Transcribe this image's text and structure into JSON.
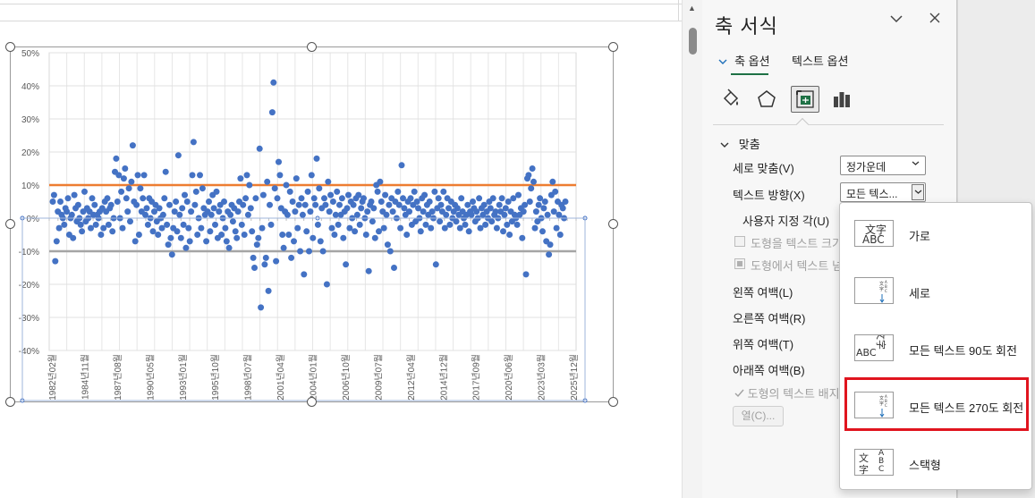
{
  "chart_data": {
    "type": "scatter",
    "y_axis": {
      "ticks": [
        "50%",
        "40%",
        "30%",
        "20%",
        "10%",
        "0%",
        "-10%",
        "-20%",
        "-30%",
        "-40%"
      ],
      "ylim": [
        -0.4,
        0.5
      ]
    },
    "x_axis": {
      "tick_labels": [
        "1982년02월",
        "1984년11월",
        "1987년08월",
        "1990년05월",
        "1993년01월",
        "1995년10월",
        "1998년07월",
        "2001년04월",
        "2004년01월",
        "2006년10월",
        "2009년07월",
        "2012년04월",
        "2014년12월",
        "2017년09월",
        "2020년06월",
        "2023년03월",
        "2025년12월"
      ],
      "label_note": "axis tick labels are rotated 270 degrees"
    },
    "reference_lines": [
      {
        "value": 0.1,
        "color": "#ed7d31"
      },
      {
        "value": -0.1,
        "color": "#a5a5a5"
      }
    ],
    "series": [
      {
        "color": "#4472c4",
        "values": [
          0.05,
          0.07,
          -0.13,
          -0.07,
          0.02,
          -0.03,
          0.05,
          0.01,
          0.0,
          -0.02,
          0.03,
          0.02,
          0.06,
          -0.05,
          0.0,
          0.01,
          -0.06,
          0.07,
          0.03,
          -0.01,
          0.04,
          0.0,
          -0.02,
          -0.04,
          0.02,
          0.08,
          -0.01,
          0.03,
          0.0,
          0.02,
          -0.03,
          0.06,
          0.01,
          0.04,
          -0.02,
          0.01,
          0.0,
          0.02,
          -0.05,
          0.03,
          -0.03,
          0.05,
          0.02,
          0.06,
          -0.02,
          0.03,
          0.04,
          -0.04,
          0.0,
          0.14,
          0.18,
          0.05,
          0.13,
          0.0,
          0.08,
          -0.03,
          0.12,
          0.15,
          0.06,
          0.02,
          0.09,
          -0.01,
          0.11,
          0.22,
          0.05,
          -0.07,
          0.04,
          0.13,
          -0.05,
          0.09,
          0.02,
          0.06,
          0.13,
          0.01,
          0.03,
          -0.02,
          0.06,
          0.0,
          0.05,
          -0.04,
          0.02,
          0.04,
          -0.01,
          -0.05,
          0.03,
          0.0,
          -0.03,
          0.01,
          0.06,
          0.14,
          -0.02,
          -0.08,
          0.04,
          -0.06,
          -0.11,
          -0.03,
          0.02,
          0.05,
          -0.04,
          0.19,
          0.01,
          -0.06,
          0.03,
          -0.02,
          0.07,
          -0.09,
          0.05,
          -0.03,
          -0.07,
          0.02,
          0.13,
          0.23,
          0.04,
          0.08,
          -0.05,
          0.0,
          0.13,
          -0.03,
          0.09,
          0.03,
          0.01,
          -0.07,
          0.02,
          0.05,
          -0.04,
          0.01,
          0.07,
          0.03,
          -0.02,
          0.08,
          -0.06,
          0.02,
          0.04,
          -0.05,
          0.0,
          0.05,
          -0.03,
          -0.07,
          0.02,
          -0.09,
          0.01,
          0.04,
          -0.01,
          0.03,
          -0.04,
          -0.06,
          0.02,
          0.05,
          0.12,
          -0.02,
          0.04,
          -0.05,
          0.06,
          0.13,
          0.01,
          0.1,
          0.03,
          -0.04,
          -0.12,
          -0.15,
          0.06,
          -0.08,
          -0.06,
          0.21,
          -0.27,
          -0.03,
          0.07,
          -0.14,
          -0.12,
          0.11,
          -0.22,
          0.04,
          -0.02,
          0.32,
          0.41,
          0.09,
          -0.13,
          0.06,
          0.17,
          0.13,
          0.03,
          -0.05,
          -0.09,
          0.02,
          0.1,
          0.01,
          -0.05,
          0.08,
          -0.12,
          0.05,
          -0.07,
          0.02,
          0.12,
          -0.03,
          0.04,
          -0.1,
          0.06,
          0.01,
          -0.17,
          0.04,
          -0.04,
          0.08,
          -0.1,
          0.02,
          0.13,
          -0.06,
          0.06,
          0.04,
          0.18,
          -0.02,
          0.09,
          -0.07,
          0.03,
          -0.1,
          0.06,
          0.04,
          -0.2,
          0.11,
          0.02,
          0.07,
          -0.03,
          0.05,
          -0.05,
          0.01,
          0.08,
          -0.02,
          0.04,
          0.01,
          0.06,
          -0.06,
          0.02,
          -0.14,
          0.03,
          0.07,
          -0.03,
          0.05,
          0.0,
          0.04,
          -0.04,
          0.06,
          0.01,
          0.07,
          -0.02,
          0.03,
          0.05,
          0.06,
          0.0,
          -0.05,
          0.02,
          -0.16,
          0.04,
          0.05,
          -0.01,
          0.03,
          -0.06,
          0.1,
          0.08,
          -0.04,
          0.11,
          0.05,
          0.02,
          -0.03,
          0.07,
          0.01,
          -0.08,
          0.04,
          -0.1,
          0.06,
          0.02,
          -0.15,
          0.05,
          0.0,
          0.08,
          0.04,
          -0.03,
          0.16,
          0.06,
          0.03,
          0.01,
          -0.05,
          0.05,
          0.02,
          0.06,
          -0.02,
          0.04,
          0.08,
          -0.01,
          0.05,
          0.03,
          0.0,
          -0.04,
          0.06,
          0.02,
          0.07,
          -0.02,
          0.04,
          0.01,
          0.05,
          -0.03,
          0.02,
          0.0,
          0.08,
          -0.14,
          0.03,
          0.06,
          -0.01,
          0.04,
          0.02,
          0.08,
          -0.03,
          0.01,
          0.06,
          0.03,
          -0.02,
          0.05,
          0.0,
          0.02,
          0.04,
          -0.01,
          0.03,
          0.01,
          -0.03,
          0.06,
          0.02,
          0.0,
          -0.02,
          0.01,
          0.04,
          -0.04,
          0.02,
          0.01,
          0.05,
          0.03,
          -0.01,
          0.02,
          0.0,
          0.06,
          -0.03,
          0.03,
          0.01,
          0.04,
          -0.02,
          0.02,
          0.0,
          0.05,
          0.03,
          -0.01,
          0.06,
          0.01,
          0.02,
          -0.03,
          0.0,
          0.04,
          0.02,
          0.06,
          -0.04,
          0.01,
          0.03,
          -0.02,
          0.05,
          -0.05,
          0.02,
          -0.01,
          0.06,
          0.01,
          0.0,
          -0.02,
          0.07,
          0.01,
          0.03,
          -0.06,
          0.02,
          0.04,
          -0.17,
          0.12,
          0.13,
          0.05,
          0.09,
          0.15,
          0.11,
          -0.03,
          0.02,
          -0.01,
          0.04,
          0.06,
          0.0,
          -0.04,
          0.03,
          0.05,
          -0.07,
          0.01,
          -0.11,
          -0.08,
          0.07,
          0.11,
          0.02,
          0.08,
          -0.03,
          0.05,
          0.01,
          -0.05,
          0.04,
          0.03,
          0.0,
          0.05
        ]
      }
    ]
  },
  "pane": {
    "title": "축 서식",
    "tab_axis_options": "축 옵션",
    "tab_text_options": "텍스트 옵션",
    "section": "맞춤",
    "fields": {
      "vertical_align_label": "세로 맞춤(V)",
      "vertical_align_value": "정가운데",
      "text_direction_label": "텍스트 방향(X)",
      "text_direction_value": "모든 텍스...",
      "custom_angle_label": "사용자 지정 각(U)",
      "autofit_label": "도형을 텍스트 크기",
      "overflow_label": "도형에서 텍스트 넘",
      "left_margin_label": "왼쪽 여백(L)",
      "right_margin_label": "오른쪽 여백(R)",
      "top_margin_label": "위쪽 여백(T)",
      "bottom_margin_label": "아래쪽 여백(B)",
      "wrap_label": "도형의 텍스트 배지",
      "columns_button": "열(C)..."
    }
  },
  "menu": {
    "items": [
      {
        "label": "가로",
        "icon": "horizontal-text-icon",
        "highlighted": false
      },
      {
        "label": "세로",
        "icon": "stacked-vertical-text-icon",
        "highlighted": false
      },
      {
        "label": "모든 텍스트 90도 회전",
        "icon": "rotate-90-text-icon",
        "highlighted": false
      },
      {
        "label": "모든 텍스트 270도 회전",
        "icon": "rotate-270-text-icon",
        "highlighted": true
      },
      {
        "label": "스택형",
        "icon": "stacked-text-icon",
        "highlighted": false
      }
    ],
    "icon_glyphs": {
      "cjk_top": "文字",
      "latin": "ABC",
      "stack_a": "A",
      "stack_b": "B",
      "stack_c": "C",
      "stack_wen": "文",
      "stack_zi": "字"
    }
  }
}
